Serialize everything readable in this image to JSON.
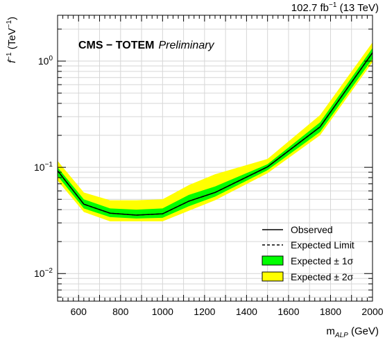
{
  "chart_data": {
    "type": "line",
    "x_scale": "linear",
    "y_scale": "log",
    "xlim": [
      500,
      2000
    ],
    "ylim": [
      0.0055,
      2.7
    ],
    "grid": true,
    "xlabel": {
      "main": "m",
      "sub": "ALP",
      "unit": " (GeV)"
    },
    "ylabel": {
      "main": "f",
      "sup": "−1",
      "unit": " (TeV",
      "unit_sup": "−1",
      "unit_close": ")"
    },
    "lumi": {
      "value": "102.7 fb",
      "sup": "−1",
      "energy": " (13 TeV)"
    },
    "experiment": {
      "name": "CMS − TOTEM",
      "status": "Preliminary"
    },
    "x_ticks": [
      600,
      800,
      1000,
      1200,
      1400,
      1600,
      1800,
      2000
    ],
    "x_tick_labels": [
      "600",
      "800",
      "1000",
      "1200",
      "1400",
      "1600",
      "1800",
      "2000"
    ],
    "y_major_ticks": [
      {
        "value": 0.01,
        "base": "10",
        "exp": "−2"
      },
      {
        "value": 0.1,
        "base": "10",
        "exp": "−1"
      },
      {
        "value": 1,
        "base": "10",
        "exp": "0"
      }
    ],
    "legend": {
      "position": "bottom-right",
      "items": [
        {
          "label": "Observed",
          "style": "solid"
        },
        {
          "label": "Expected Limit",
          "style": "dashed"
        },
        {
          "label": "Expected ± 1σ",
          "style": "band",
          "color": "#00ff00"
        },
        {
          "label": "Expected ± 2σ",
          "style": "band",
          "color": "#ffff00"
        }
      ]
    },
    "colors": {
      "band_1sigma": "#00ff00",
      "band_2sigma": "#ffff00",
      "line": "#000000"
    },
    "x": [
      500,
      625,
      750,
      875,
      1000,
      1125,
      1250,
      1500,
      1750,
      2000
    ],
    "observed": [
      0.093,
      0.045,
      0.037,
      0.0355,
      0.0365,
      0.048,
      0.058,
      0.101,
      0.24,
      1.2
    ],
    "expected": [
      0.093,
      0.045,
      0.037,
      0.0355,
      0.0365,
      0.048,
      0.058,
      0.101,
      0.24,
      1.2
    ],
    "band_1sigma": {
      "low": [
        0.083,
        0.041,
        0.034,
        0.033,
        0.0335,
        0.043,
        0.053,
        0.094,
        0.215,
        1.05
      ],
      "high": [
        0.1,
        0.05,
        0.041,
        0.04,
        0.041,
        0.055,
        0.066,
        0.107,
        0.265,
        1.33
      ]
    },
    "band_2sigma": {
      "low": [
        0.075,
        0.038,
        0.031,
        0.031,
        0.031,
        0.039,
        0.049,
        0.088,
        0.2,
        0.98
      ],
      "high": [
        0.115,
        0.058,
        0.049,
        0.049,
        0.05,
        0.068,
        0.086,
        0.12,
        0.31,
        1.5
      ]
    }
  }
}
